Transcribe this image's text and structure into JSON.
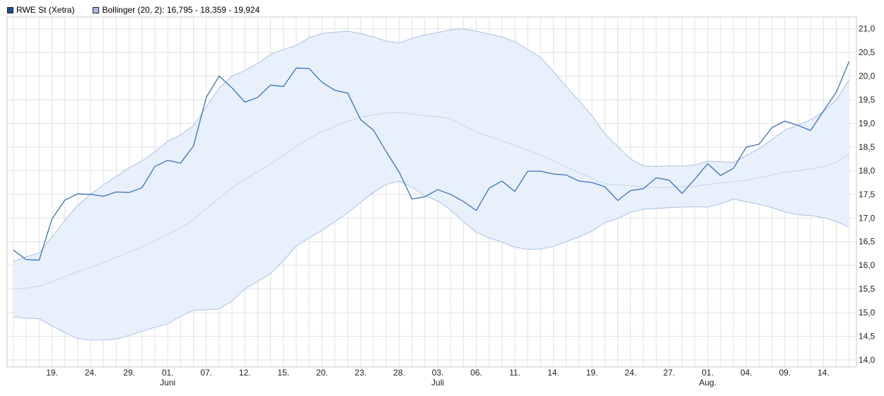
{
  "legend": [
    {
      "label": "RWE St (Xetra)",
      "color": "#1f4e96"
    },
    {
      "label": "Bollinger (20, 2): 16,795 - 18,359 - 19,924",
      "color": "#a9bce0"
    }
  ],
  "chart_data": {
    "type": "line",
    "grid": true,
    "ylim": [
      13.85,
      21.25
    ],
    "yticks": [
      "14,0",
      "14,5",
      "15,0",
      "15,5",
      "16,0",
      "16,5",
      "17,0",
      "17,5",
      "18,0",
      "18,5",
      "19,0",
      "19,5",
      "20,0",
      "20,5",
      "21,0"
    ],
    "xticks": [
      {
        "label": "19.",
        "sub": ""
      },
      {
        "label": "24.",
        "sub": ""
      },
      {
        "label": "29.",
        "sub": ""
      },
      {
        "label": "01.",
        "sub": "Juni"
      },
      {
        "label": "07.",
        "sub": ""
      },
      {
        "label": "12.",
        "sub": ""
      },
      {
        "label": "15.",
        "sub": ""
      },
      {
        "label": "20.",
        "sub": ""
      },
      {
        "label": "23.",
        "sub": ""
      },
      {
        "label": "28.",
        "sub": ""
      },
      {
        "label": "03.",
        "sub": "Juli"
      },
      {
        "label": "06.",
        "sub": ""
      },
      {
        "label": "11.",
        "sub": ""
      },
      {
        "label": "14.",
        "sub": ""
      },
      {
        "label": "19.",
        "sub": ""
      },
      {
        "label": "24.",
        "sub": ""
      },
      {
        "label": "27.",
        "sub": ""
      },
      {
        "label": "01.",
        "sub": "Aug."
      },
      {
        "label": "04.",
        "sub": ""
      },
      {
        "label": "09.",
        "sub": ""
      },
      {
        "label": "14.",
        "sub": ""
      }
    ],
    "series": [
      {
        "name": "RWE St (Xetra)",
        "color": "#3a72b8",
        "values": [
          16.32,
          16.12,
          16.11,
          16.98,
          17.38,
          17.51,
          17.5,
          17.46,
          17.55,
          17.54,
          17.64,
          18.09,
          18.22,
          18.16,
          18.52,
          19.55,
          20.0,
          19.75,
          19.45,
          19.55,
          19.81,
          19.78,
          20.17,
          20.16,
          19.87,
          19.7,
          19.64,
          19.08,
          18.86,
          18.4,
          17.97,
          17.4,
          17.45,
          17.6,
          17.5,
          17.35,
          17.16,
          17.63,
          17.78,
          17.56,
          17.99,
          17.99,
          17.93,
          17.91,
          17.78,
          17.75,
          17.66,
          17.37,
          17.58,
          17.62,
          17.85,
          17.8,
          17.52,
          17.82,
          18.15,
          17.9,
          18.05,
          18.5,
          18.56,
          18.91,
          19.05,
          18.96,
          18.85,
          19.26,
          19.66,
          20.31
        ]
      },
      {
        "name": "Bollinger upper",
        "color": "#a9c2e6",
        "values": [
          16.08,
          16.18,
          16.26,
          16.6,
          16.95,
          17.27,
          17.5,
          17.7,
          17.88,
          18.06,
          18.21,
          18.4,
          18.62,
          18.76,
          18.95,
          19.35,
          19.75,
          20.0,
          20.12,
          20.27,
          20.46,
          20.56,
          20.65,
          20.81,
          20.9,
          20.93,
          20.95,
          20.9,
          20.83,
          20.74,
          20.7,
          20.8,
          20.87,
          20.92,
          20.98,
          21.0,
          20.95,
          20.89,
          20.83,
          20.73,
          20.56,
          20.4,
          20.09,
          19.78,
          19.48,
          19.16,
          18.78,
          18.51,
          18.25,
          18.1,
          18.09,
          18.1,
          18.1,
          18.12,
          18.2,
          18.19,
          18.17,
          18.32,
          18.47,
          18.66,
          18.86,
          18.96,
          19.08,
          19.25,
          19.5,
          19.93
        ]
      },
      {
        "name": "Bollinger middle",
        "color": "#c9d8ef",
        "values": [
          15.5,
          15.52,
          15.56,
          15.65,
          15.76,
          15.86,
          15.96,
          16.06,
          16.17,
          16.28,
          16.39,
          16.52,
          16.65,
          16.79,
          16.96,
          17.2,
          17.42,
          17.63,
          17.82,
          17.98,
          18.14,
          18.32,
          18.52,
          18.68,
          18.82,
          18.94,
          19.04,
          19.13,
          19.18,
          19.22,
          19.23,
          19.2,
          19.16,
          19.14,
          19.1,
          18.96,
          18.82,
          18.72,
          18.63,
          18.53,
          18.44,
          18.33,
          18.21,
          18.08,
          17.96,
          17.84,
          17.72,
          17.7,
          17.68,
          17.66,
          17.64,
          17.65,
          17.66,
          17.67,
          17.71,
          17.74,
          17.77,
          17.8,
          17.85,
          17.91,
          17.97,
          18.0,
          18.04,
          18.09,
          18.17,
          18.36
        ]
      },
      {
        "name": "Bollinger lower",
        "color": "#a9c2e6",
        "values": [
          14.91,
          14.88,
          14.87,
          14.72,
          14.58,
          14.45,
          14.42,
          14.42,
          14.44,
          14.52,
          14.6,
          14.69,
          14.76,
          14.92,
          15.05,
          15.06,
          15.08,
          15.24,
          15.5,
          15.66,
          15.82,
          16.1,
          16.41,
          16.58,
          16.74,
          16.92,
          17.11,
          17.33,
          17.54,
          17.71,
          17.78,
          17.65,
          17.47,
          17.36,
          17.17,
          16.92,
          16.7,
          16.58,
          16.49,
          16.38,
          16.34,
          16.34,
          16.4,
          16.5,
          16.6,
          16.72,
          16.9,
          16.99,
          17.12,
          17.19,
          17.2,
          17.22,
          17.23,
          17.24,
          17.23,
          17.3,
          17.4,
          17.34,
          17.29,
          17.22,
          17.13,
          17.07,
          17.05,
          17.01,
          16.93,
          16.8
        ]
      }
    ]
  }
}
